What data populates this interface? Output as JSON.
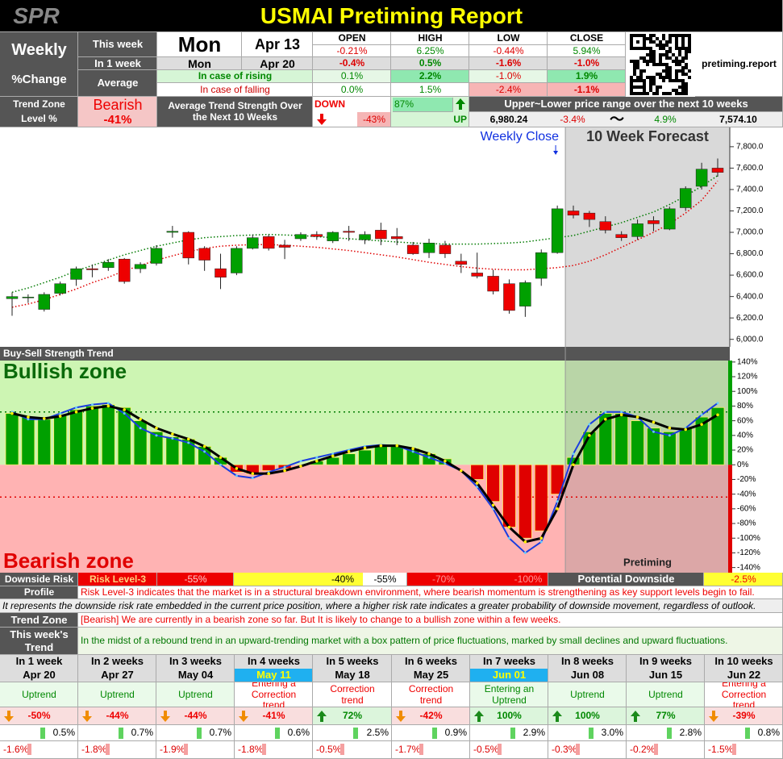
{
  "header": {
    "logo": "SPR",
    "title": "USMAI Pretiming Report",
    "site": "pretiming.report"
  },
  "summary": {
    "weekly": "Weekly",
    "change": "%Change",
    "this_week": "This week",
    "in_1_week": "In 1 week",
    "average": "Average",
    "day": "Mon",
    "date": "Apr 13",
    "next_day": "Mon",
    "next_date": "Apr 20",
    "rising": "In case of rising",
    "falling": "In case of falling",
    "columns": [
      "OPEN",
      "HIGH",
      "LOW",
      "CLOSE"
    ],
    "rows": [
      [
        "-0.21%",
        "6.25%",
        "-0.44%",
        "5.94%"
      ],
      [
        "-0.4%",
        "0.5%",
        "-1.6%",
        "-1.0%"
      ],
      [
        "0.1%",
        "2.2%",
        "-1.0%",
        "1.9%"
      ],
      [
        "0.0%",
        "1.5%",
        "-2.4%",
        "-1.1%"
      ]
    ]
  },
  "trend": {
    "zone": "Trend Zone",
    "level": "Level %",
    "state": "Bearish",
    "state_value": "-41%",
    "strength_label": "Average Trend Strength Over the Next 10 Weeks",
    "down": "DOWN",
    "down_value": "-43%",
    "up_value": "87%",
    "up": "UP",
    "range_label": "Upper~Lower price range over the next 10 weeks",
    "lower_price": "6,980.24",
    "lower_pct": "-3.4%",
    "tilde": "〜",
    "upper_pct": "4.9%",
    "upper_price": "7,574.10"
  },
  "chart_data": [
    {
      "type": "candlestick",
      "annotations": [
        "Weekly Close",
        "10 Week Forecast"
      ],
      "open": [
        6380,
        6390,
        6280,
        6430,
        6560,
        6660,
        6670,
        6750,
        6660,
        6710,
        7000,
        7000,
        6850,
        6660,
        6620,
        6850,
        6960,
        6880,
        6940,
        6980,
        6920,
        7010,
        6930,
        7020,
        6960,
        6880,
        6810,
        6880,
        6730,
        6620,
        6590,
        6520,
        6310,
        6570,
        6810,
        7200,
        7180,
        7100,
        6980,
        6960,
        7110,
        7030,
        7230,
        7430,
        7600
      ],
      "high": [
        6440,
        6420,
        6440,
        6540,
        6680,
        6700,
        6750,
        6760,
        6720,
        6880,
        7060,
        7010,
        6870,
        6800,
        6870,
        6980,
        6980,
        6930,
        7000,
        7010,
        7010,
        7060,
        7010,
        7090,
        7040,
        6910,
        6940,
        6920,
        6800,
        6810,
        6650,
        6560,
        6550,
        6840,
        7250,
        7250,
        7200,
        7150,
        7010,
        7120,
        7150,
        7240,
        7430,
        7650,
        7690
      ],
      "low": [
        6220,
        6340,
        6260,
        6410,
        6500,
        6580,
        6640,
        6520,
        6620,
        6690,
        6950,
        6700,
        6640,
        6470,
        6600,
        6840,
        6830,
        6750,
        6920,
        6930,
        6900,
        6920,
        6890,
        6880,
        6880,
        6790,
        6760,
        6760,
        6620,
        6570,
        6420,
        6240,
        6210,
        6500,
        6800,
        7130,
        7050,
        6990,
        6920,
        6930,
        7010,
        7020,
        7200,
        7400,
        7520
      ],
      "close": [
        6400,
        6395,
        6420,
        6520,
        6660,
        6650,
        6720,
        6540,
        6700,
        6850,
        7010,
        6760,
        6740,
        6580,
        6850,
        6950,
        6850,
        6860,
        6980,
        6960,
        7000,
        7000,
        6980,
        6940,
        6940,
        6800,
        6900,
        6800,
        6700,
        6590,
        6450,
        6270,
        6530,
        6810,
        7220,
        7160,
        7120,
        7020,
        6950,
        7080,
        7080,
        7220,
        7410,
        7590,
        7560
      ],
      "up_color": "#00a000",
      "down_color": "#ee0000",
      "trend_lines": [
        {
          "color": "#007a00",
          "values": [
            6440,
            6480,
            6530,
            6580,
            6640,
            6690,
            6740,
            6790,
            6830,
            6870,
            6900,
            6930,
            6950,
            6960,
            6970,
            6975,
            6980,
            6975,
            6970,
            6960,
            6950,
            6940,
            6930,
            6920,
            6910,
            6900,
            6895,
            6890,
            6890,
            6890,
            6895,
            6900,
            6910,
            6930,
            6950,
            6970,
            7010,
            7050,
            7090,
            7140,
            7190,
            7260,
            7340,
            7430,
            7530
          ]
        },
        {
          "color": "#e00000",
          "values": [
            6300,
            6330,
            6370,
            6420,
            6470,
            6530,
            6580,
            6640,
            6690,
            6740,
            6780,
            6820,
            6850,
            6870,
            6880,
            6885,
            6885,
            6880,
            6870,
            6860,
            6845,
            6830,
            6810,
            6790,
            6770,
            6745,
            6720,
            6700,
            6680,
            6665,
            6655,
            6650,
            6650,
            6660,
            6670,
            6690,
            6730,
            6790,
            6860,
            6930,
            7000,
            7080,
            7180,
            7300,
            7480
          ]
        }
      ],
      "ylim": [
        5930,
        7980
      ],
      "yticks": [
        {
          "value": 6000,
          "label": "6,000.0"
        },
        {
          "value": 6200,
          "label": "6,200.0"
        },
        {
          "value": 6400,
          "label": "6,400.0"
        },
        {
          "value": 6600,
          "label": "6,600.0"
        },
        {
          "value": 6800,
          "label": "6,800.0"
        },
        {
          "value": 7000,
          "label": "7,000.0"
        },
        {
          "value": 7200,
          "label": "7,200.0"
        },
        {
          "value": 7400,
          "label": "7,400.0"
        },
        {
          "value": 7600,
          "label": "7,600.0"
        },
        {
          "value": 7800,
          "label": "7,800.0"
        }
      ]
    },
    {
      "type": "bar",
      "title": "Buy-Sell Strength Trend",
      "annotations": [
        "Bullish zone",
        "Bearish zone",
        "Pretiming"
      ],
      "values": [
        70,
        65,
        62,
        68,
        75,
        80,
        82,
        78,
        60,
        45,
        38,
        35,
        25,
        10,
        -10,
        -12,
        -8,
        -5,
        0,
        5,
        10,
        15,
        20,
        25,
        25,
        22,
        15,
        8,
        0,
        -20,
        -50,
        -85,
        -100,
        -90,
        -40,
        10,
        45,
        70,
        70,
        60,
        50,
        45,
        50,
        65,
        78
      ],
      "positive_color": "#00a000",
      "negative_color": "#e00000",
      "lines": [
        {
          "color": "#1a3de0",
          "values": [
            72,
            62,
            62,
            70,
            78,
            82,
            84,
            70,
            50,
            40,
            36,
            30,
            18,
            0,
            -15,
            -18,
            -10,
            -3,
            5,
            10,
            15,
            20,
            25,
            27,
            26,
            18,
            10,
            2,
            -8,
            -30,
            -60,
            -100,
            -120,
            -105,
            -50,
            15,
            55,
            72,
            72,
            65,
            45,
            40,
            50,
            68,
            84
          ]
        },
        {
          "color": "#000000",
          "values": [
            70,
            65,
            63,
            66,
            72,
            77,
            80,
            75,
            62,
            50,
            42,
            35,
            25,
            10,
            -5,
            -12,
            -12,
            -8,
            -2,
            5,
            12,
            18,
            23,
            26,
            26,
            22,
            15,
            5,
            -8,
            -25,
            -55,
            -85,
            -105,
            -100,
            -60,
            0,
            40,
            62,
            68,
            65,
            58,
            50,
            48,
            55,
            68
          ]
        }
      ],
      "thresholds": [
        {
          "color": "#007a00",
          "value": 72
        },
        {
          "color": "#e00000",
          "value": -44
        }
      ],
      "ylim": [
        -147,
        142
      ],
      "yticks": [
        {
          "value": 140,
          "label": "140%"
        },
        {
          "value": 120,
          "label": "120%"
        },
        {
          "value": 100,
          "label": "100%"
        },
        {
          "value": 80,
          "label": "80%"
        },
        {
          "value": 60,
          "label": "60%"
        },
        {
          "value": 40,
          "label": "40%"
        },
        {
          "value": 20,
          "label": "20%"
        },
        {
          "value": 0,
          "label": "0%"
        },
        {
          "value": -20,
          "label": "-20%"
        },
        {
          "value": -40,
          "label": "-40%"
        },
        {
          "value": -60,
          "label": "-60%"
        },
        {
          "value": -80,
          "label": "-80%"
        },
        {
          "value": -100,
          "label": "-100%"
        },
        {
          "value": -120,
          "label": "-120%"
        },
        {
          "value": -140,
          "label": "-140%"
        }
      ]
    }
  ],
  "risk": {
    "label": "Downside Risk",
    "label2": "Profile",
    "level": "Risk Level-3",
    "scale": [
      "-55%",
      "-40%",
      "-55%",
      "-70%",
      "-100%"
    ],
    "potential_label": "Potential Downside",
    "potential": "-2.5%",
    "description": "Risk Level-3 indicates that the market is in a structural breakdown environment, where bearish momentum is strengthening as key support levels begin to fail.",
    "note": "It represents the downside risk rate embedded in the current price position, where a higher risk rate indicates a greater probability of downside movement, regardless of outlook."
  },
  "outlook": {
    "zone_label": "Trend Zone",
    "zone_text": "[Bearish] We are currently in a bearish zone so far. But It is likely to change to a bullish zone within a few weeks.",
    "week_label": "This week's",
    "week_label2": "Trend",
    "week_text": "In the midst of a rebound trend in an upward-trending market with a box pattern of price fluctuations, marked by small declines and upward fluctuations."
  },
  "weeks": [
    {
      "week": "In 1 week",
      "date": "Apr 20",
      "trend": "Uptrend",
      "strength": "-50%",
      "up": "0.5%",
      "down": "-1.6%"
    },
    {
      "week": "In 2 weeks",
      "date": "Apr 27",
      "trend": "Uptrend",
      "strength": "-44%",
      "up": "0.7%",
      "down": "-1.8%"
    },
    {
      "week": "In 3 weeks",
      "date": "May 04",
      "trend": "Uptrend",
      "strength": "-44%",
      "up": "0.7%",
      "down": "-1.9%"
    },
    {
      "week": "In 4 weeks",
      "date": "May 11",
      "highlight": true,
      "trend": "Entering a Correction trend",
      "strength": "-41%",
      "up": "0.6%",
      "down": "-1.8%"
    },
    {
      "week": "In 5 weeks",
      "date": "May 18",
      "trend": "Correction trend",
      "strength": "72%",
      "up": "2.5%",
      "down": "-0.5%"
    },
    {
      "week": "In 6 weeks",
      "date": "May 25",
      "trend": "Correction trend",
      "strength": "-42%",
      "up": "0.9%",
      "down": "-1.7%"
    },
    {
      "week": "In 7 weeks",
      "date": "Jun 01",
      "highlight": true,
      "trend": "Entering an Uptrend",
      "strength": "100%",
      "up": "2.9%",
      "down": "-0.5%"
    },
    {
      "week": "In 8 weeks",
      "date": "Jun 08",
      "trend": "Uptrend",
      "strength": "100%",
      "up": "3.0%",
      "down": "-0.3%"
    },
    {
      "week": "In 9 weeks",
      "date": "Jun 15",
      "trend": "Uptrend",
      "strength": "77%",
      "up": "2.8%",
      "down": "-0.2%"
    },
    {
      "week": "In 10 weeks",
      "date": "Jun 22",
      "trend": "Entering a Correction trend",
      "strength": "-39%",
      "up": "0.8%",
      "down": "-1.5%"
    }
  ]
}
